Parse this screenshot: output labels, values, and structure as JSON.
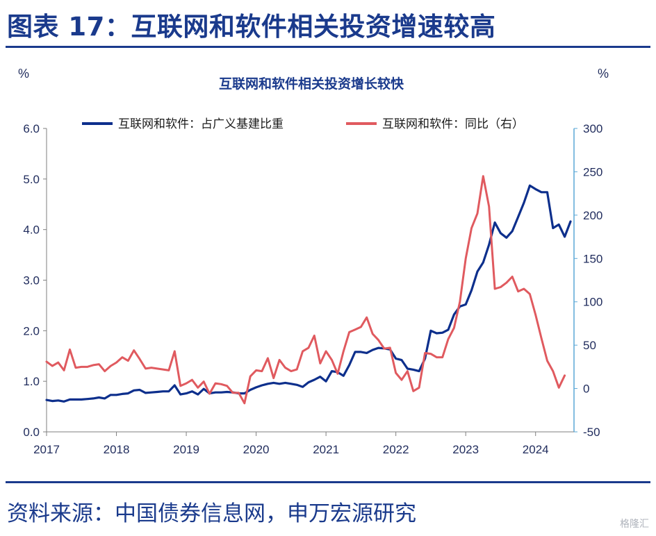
{
  "header": {
    "title": "图表 17：互联网和软件相关投资增速较高"
  },
  "footer": {
    "source": "资料来源：中国债券信息网，申万宏源研究",
    "watermark": "格隆汇"
  },
  "chart_data": {
    "type": "line",
    "title": "互联网和软件相关投资增长较快",
    "y_unit_left": "%",
    "y_unit_right": "%",
    "y_left": {
      "lim": [
        0,
        6
      ],
      "ticks": [
        "0.0",
        "1.0",
        "2.0",
        "3.0",
        "4.0",
        "5.0",
        "6.0"
      ]
    },
    "y_right": {
      "lim": [
        -50,
        300
      ],
      "ticks": [
        "-50",
        "0",
        "50",
        "100",
        "150",
        "200",
        "250",
        "300"
      ]
    },
    "x": {
      "lim": [
        2017,
        2024.55
      ],
      "ticks": [
        "2017",
        "2018",
        "2019",
        "2020",
        "2021",
        "2022",
        "2023",
        "2024"
      ]
    },
    "legend_position": "top",
    "grid": false,
    "series": [
      {
        "name": "互联网和软件：占广义基建比重",
        "axis": "left",
        "color": "#0d2f8c",
        "points": [
          [
            2017.0,
            0.63
          ],
          [
            2017.083,
            0.61
          ],
          [
            2017.167,
            0.62
          ],
          [
            2017.25,
            0.6
          ],
          [
            2017.333,
            0.64
          ],
          [
            2017.417,
            0.64
          ],
          [
            2017.5,
            0.64
          ],
          [
            2017.583,
            0.65
          ],
          [
            2017.667,
            0.66
          ],
          [
            2017.75,
            0.68
          ],
          [
            2017.833,
            0.66
          ],
          [
            2017.917,
            0.73
          ],
          [
            2018.0,
            0.73
          ],
          [
            2018.083,
            0.75
          ],
          [
            2018.167,
            0.76
          ],
          [
            2018.25,
            0.82
          ],
          [
            2018.333,
            0.83
          ],
          [
            2018.417,
            0.77
          ],
          [
            2018.5,
            0.78
          ],
          [
            2018.583,
            0.79
          ],
          [
            2018.667,
            0.8
          ],
          [
            2018.75,
            0.8
          ],
          [
            2018.833,
            0.92
          ],
          [
            2018.917,
            0.74
          ],
          [
            2019.0,
            0.76
          ],
          [
            2019.083,
            0.8
          ],
          [
            2019.167,
            0.74
          ],
          [
            2019.25,
            0.85
          ],
          [
            2019.333,
            0.76
          ],
          [
            2019.417,
            0.78
          ],
          [
            2019.5,
            0.78
          ],
          [
            2019.583,
            0.79
          ],
          [
            2019.667,
            0.78
          ],
          [
            2019.75,
            0.76
          ],
          [
            2019.833,
            0.76
          ],
          [
            2019.917,
            0.83
          ],
          [
            2020.0,
            0.88
          ],
          [
            2020.083,
            0.92
          ],
          [
            2020.167,
            0.95
          ],
          [
            2020.25,
            0.97
          ],
          [
            2020.333,
            0.95
          ],
          [
            2020.417,
            0.97
          ],
          [
            2020.5,
            0.95
          ],
          [
            2020.583,
            0.93
          ],
          [
            2020.667,
            0.89
          ],
          [
            2020.75,
            0.98
          ],
          [
            2020.833,
            1.03
          ],
          [
            2020.917,
            1.09
          ],
          [
            2021.0,
            1.0
          ],
          [
            2021.083,
            1.2
          ],
          [
            2021.167,
            1.18
          ],
          [
            2021.25,
            1.11
          ],
          [
            2021.333,
            1.32
          ],
          [
            2021.417,
            1.58
          ],
          [
            2021.5,
            1.58
          ],
          [
            2021.583,
            1.56
          ],
          [
            2021.667,
            1.62
          ],
          [
            2021.75,
            1.66
          ],
          [
            2021.833,
            1.65
          ],
          [
            2021.917,
            1.63
          ],
          [
            2022.0,
            1.45
          ],
          [
            2022.083,
            1.42
          ],
          [
            2022.167,
            1.25
          ],
          [
            2022.25,
            1.23
          ],
          [
            2022.333,
            1.2
          ],
          [
            2022.417,
            1.45
          ],
          [
            2022.5,
            2.0
          ],
          [
            2022.583,
            1.95
          ],
          [
            2022.667,
            1.96
          ],
          [
            2022.75,
            2.02
          ],
          [
            2022.833,
            2.32
          ],
          [
            2022.917,
            2.48
          ],
          [
            2023.0,
            2.52
          ],
          [
            2023.083,
            2.8
          ],
          [
            2023.167,
            3.17
          ],
          [
            2023.25,
            3.35
          ],
          [
            2023.333,
            3.7
          ],
          [
            2023.417,
            4.14
          ],
          [
            2023.5,
            3.93
          ],
          [
            2023.583,
            3.84
          ],
          [
            2023.667,
            3.97
          ],
          [
            2023.75,
            4.25
          ],
          [
            2023.833,
            4.53
          ],
          [
            2023.917,
            4.87
          ],
          [
            2024.0,
            4.8
          ],
          [
            2024.083,
            4.74
          ],
          [
            2024.167,
            4.74
          ],
          [
            2024.25,
            4.03
          ],
          [
            2024.333,
            4.1
          ],
          [
            2024.417,
            3.86
          ],
          [
            2024.5,
            4.16
          ]
        ]
      },
      {
        "name": "互联网和软件：同比（右）",
        "axis": "right",
        "color": "#e05a5f",
        "points": [
          [
            2017.0,
            31
          ],
          [
            2017.083,
            26
          ],
          [
            2017.167,
            30
          ],
          [
            2017.25,
            21
          ],
          [
            2017.333,
            45
          ],
          [
            2017.417,
            24
          ],
          [
            2017.5,
            25
          ],
          [
            2017.583,
            25
          ],
          [
            2017.667,
            27
          ],
          [
            2017.75,
            28
          ],
          [
            2017.833,
            20
          ],
          [
            2017.917,
            26
          ],
          [
            2018.0,
            30
          ],
          [
            2018.083,
            36
          ],
          [
            2018.167,
            32
          ],
          [
            2018.25,
            44
          ],
          [
            2018.333,
            34
          ],
          [
            2018.417,
            23
          ],
          [
            2018.5,
            24
          ],
          [
            2018.583,
            23
          ],
          [
            2018.667,
            22
          ],
          [
            2018.75,
            21
          ],
          [
            2018.833,
            43
          ],
          [
            2018.917,
            3
          ],
          [
            2019.0,
            6
          ],
          [
            2019.083,
            10
          ],
          [
            2019.167,
            1
          ],
          [
            2019.25,
            8
          ],
          [
            2019.333,
            -6
          ],
          [
            2019.417,
            6
          ],
          [
            2019.5,
            5
          ],
          [
            2019.583,
            3
          ],
          [
            2019.667,
            -5
          ],
          [
            2019.75,
            -5
          ],
          [
            2019.833,
            -17
          ],
          [
            2019.917,
            14
          ],
          [
            2020.0,
            21
          ],
          [
            2020.083,
            20
          ],
          [
            2020.167,
            35
          ],
          [
            2020.25,
            12
          ],
          [
            2020.333,
            33
          ],
          [
            2020.417,
            24
          ],
          [
            2020.5,
            20
          ],
          [
            2020.583,
            22
          ],
          [
            2020.667,
            43
          ],
          [
            2020.75,
            47
          ],
          [
            2020.833,
            61
          ],
          [
            2020.917,
            29
          ],
          [
            2021.0,
            43
          ],
          [
            2021.083,
            33
          ],
          [
            2021.167,
            17
          ],
          [
            2021.25,
            43
          ],
          [
            2021.333,
            65
          ],
          [
            2021.417,
            68
          ],
          [
            2021.5,
            71
          ],
          [
            2021.583,
            82
          ],
          [
            2021.667,
            63
          ],
          [
            2021.75,
            56
          ],
          [
            2021.833,
            46
          ],
          [
            2021.917,
            47
          ],
          [
            2022.0,
            18
          ],
          [
            2022.083,
            10
          ],
          [
            2022.167,
            20
          ],
          [
            2022.25,
            -3
          ],
          [
            2022.333,
            1
          ],
          [
            2022.417,
            41
          ],
          [
            2022.5,
            40
          ],
          [
            2022.583,
            36
          ],
          [
            2022.667,
            36
          ],
          [
            2022.75,
            57
          ],
          [
            2022.833,
            70
          ],
          [
            2022.917,
            100
          ],
          [
            2023.0,
            150
          ],
          [
            2023.083,
            185
          ],
          [
            2023.167,
            202
          ],
          [
            2023.25,
            245
          ],
          [
            2023.333,
            210
          ],
          [
            2023.417,
            115
          ],
          [
            2023.5,
            117
          ],
          [
            2023.583,
            122
          ],
          [
            2023.667,
            129
          ],
          [
            2023.75,
            112
          ],
          [
            2023.833,
            115
          ],
          [
            2023.917,
            109
          ],
          [
            2024.0,
            85
          ],
          [
            2024.083,
            58
          ],
          [
            2024.167,
            32
          ],
          [
            2024.25,
            20
          ],
          [
            2024.333,
            1
          ],
          [
            2024.417,
            15
          ]
        ]
      }
    ]
  }
}
